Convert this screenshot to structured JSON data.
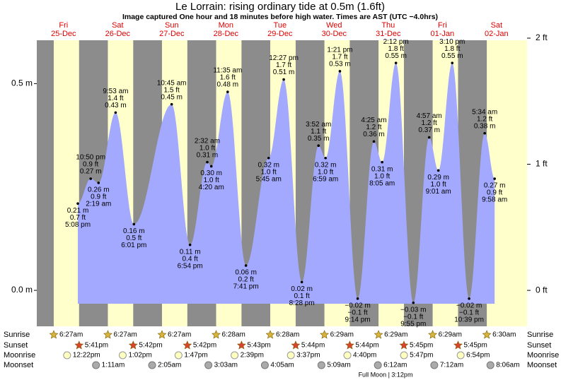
{
  "chart_data": {
    "type": "tide",
    "title": "Le Lorrain: rising  ordinary tide at 0.5m (1.6ft)",
    "subtitle": "Image captured One hour and 18 minutes before high water. Times are AST (UTC −4.0hrs)",
    "ylim": [
      -0.087,
      0.61
    ],
    "yticks": [
      {
        "value": 0,
        "label": "0.0 m"
      },
      {
        "value": 0.5,
        "label": "0.5 m"
      }
    ],
    "y2lim": [
      -0.285,
      2.0
    ],
    "y2ticks": [
      {
        "value": 0,
        "label": "0 ft"
      },
      {
        "value": 1,
        "label": "1 ft"
      },
      {
        "value": 2,
        "label": "2 ft"
      }
    ],
    "row_labels": [
      "Sunrise",
      "Sunset",
      "Moonrise",
      "Moonset"
    ],
    "moon_phase": "Full Moon | 3:12pm",
    "days": [
      {
        "weekday": "Fri",
        "date": "25-Dec",
        "sunrise": "6:27am",
        "sunset": "5:41pm",
        "moonrise": "12:22pm",
        "tides": [
          {
            "time": "5:08 pm",
            "m": 0.21,
            "m_label": "0.21 m",
            "ft": "0.7 ft"
          },
          {
            "time": "10:50 pm",
            "m": 0.27,
            "m_label": "0.27 m",
            "ft": "0.9 ft"
          }
        ]
      },
      {
        "weekday": "Sat",
        "date": "26-Dec",
        "sunrise": "6:27am",
        "sunset": "5:42pm",
        "moonrise": "1:02pm",
        "moonset": "1:11am",
        "tides": [
          {
            "time": "2:19 am",
            "m": 0.26,
            "m_label": "0.26 m",
            "ft": "0.9 ft"
          },
          {
            "time": "9:53 am",
            "m": 0.43,
            "m_label": "0.43 m",
            "ft": "1.4 ft"
          },
          {
            "time": "6:01 pm",
            "m": 0.16,
            "m_label": "0.16 m",
            "ft": "0.5 ft"
          }
        ]
      },
      {
        "weekday": "Sun",
        "date": "27-Dec",
        "sunrise": "6:27am",
        "sunset": "5:42pm",
        "moonrise": "1:47pm",
        "moonset": "2:05am",
        "tides": [
          {
            "time": "10:45 am",
            "m": 0.45,
            "m_label": "0.45 m",
            "ft": "1.5 ft"
          },
          {
            "time": "6:54 pm",
            "m": 0.11,
            "m_label": "0.11 m",
            "ft": "0.4 ft"
          }
        ]
      },
      {
        "weekday": "Mon",
        "date": "28-Dec",
        "sunrise": "6:28am",
        "sunset": "5:43pm",
        "moonrise": "2:39pm",
        "moonset": "3:03am",
        "tides": [
          {
            "time": "2:32 am",
            "m": 0.31,
            "m_label": "0.31 m",
            "ft": "1.0 ft"
          },
          {
            "time": "4:20 am",
            "m": 0.3,
            "m_label": "0.30 m",
            "ft": "1.0 ft"
          },
          {
            "time": "11:35 am",
            "m": 0.48,
            "m_label": "0.48 m",
            "ft": "1.6 ft"
          },
          {
            "time": "7:41 pm",
            "m": 0.06,
            "m_label": "0.06 m",
            "ft": "0.2 ft"
          }
        ]
      },
      {
        "weekday": "Tue",
        "date": "29-Dec",
        "sunrise": "6:28am",
        "sunset": "5:44pm",
        "moonrise": "3:37pm",
        "moonset": "4:05am",
        "tides": [
          {
            "time": "5:45 am",
            "m": 0.32,
            "m_label": "0.32 m",
            "ft": "1.0 ft"
          },
          {
            "time": "12:27 pm",
            "m": 0.51,
            "m_label": "0.51 m",
            "ft": "1.7 ft"
          },
          {
            "time": "8:28 pm",
            "m": 0.02,
            "m_label": "0.02 m",
            "ft": "0.1 ft"
          }
        ]
      },
      {
        "weekday": "Wed",
        "date": "30-Dec",
        "sunrise": "6:29am",
        "sunset": "5:44pm",
        "moonrise": "4:40pm",
        "moonset": "5:09am",
        "tides": [
          {
            "time": "3:52 am",
            "m": 0.35,
            "m_label": "0.35 m",
            "ft": "1.1 ft"
          },
          {
            "time": "6:59 am",
            "m": 0.32,
            "m_label": "0.32 m",
            "ft": "1.0 ft"
          },
          {
            "time": "1:21 pm",
            "m": 0.53,
            "m_label": "0.53 m",
            "ft": "1.7 ft"
          },
          {
            "time": "9:14 pm",
            "m": -0.02,
            "m_label": "−0.02 m",
            "ft": "−0.1 ft"
          }
        ]
      },
      {
        "weekday": "Thu",
        "date": "31-Dec",
        "sunrise": "6:29am",
        "sunset": "5:45pm",
        "moonrise": "5:47pm",
        "moonset": "6:12am",
        "tides": [
          {
            "time": "4:25 am",
            "m": 0.36,
            "m_label": "0.36 m",
            "ft": "1.2 ft"
          },
          {
            "time": "8:05 am",
            "m": 0.31,
            "m_label": "0.31 m",
            "ft": "1.0 ft"
          },
          {
            "time": "2:12 pm",
            "m": 0.55,
            "m_label": "0.55 m",
            "ft": "1.8 ft"
          },
          {
            "time": "9:55 pm",
            "m": -0.03,
            "m_label": "−0.03 m",
            "ft": "−0.1 ft"
          }
        ]
      },
      {
        "weekday": "Fri",
        "date": "01-Jan",
        "sunrise": "6:29am",
        "sunset": "5:45pm",
        "moonrise": "6:54pm",
        "moonset": "7:12am",
        "tides": [
          {
            "time": "4:57 am",
            "m": 0.37,
            "m_label": "0.37 m",
            "ft": "1.2 ft"
          },
          {
            "time": "9:01 am",
            "m": 0.29,
            "m_label": "0.29 m",
            "ft": "1.0 ft"
          },
          {
            "time": "3:10 pm",
            "m": 0.55,
            "m_label": "0.55 m",
            "ft": "1.8 ft"
          },
          {
            "time": "10:39 pm",
            "m": -0.02,
            "m_label": "−0.02 m",
            "ft": "−0.1 ft"
          }
        ]
      },
      {
        "weekday": "Sat",
        "date": "02-Jan",
        "sunrise": "6:30am",
        "moonset": "8:06am",
        "tides": [
          {
            "time": "5:34 am",
            "m": 0.38,
            "m_label": "0.38 m",
            "ft": "1.2 ft"
          },
          {
            "time": "9:58 am",
            "m": 0.27,
            "m_label": "0.27 m",
            "ft": "0.9 ft"
          }
        ]
      }
    ]
  }
}
